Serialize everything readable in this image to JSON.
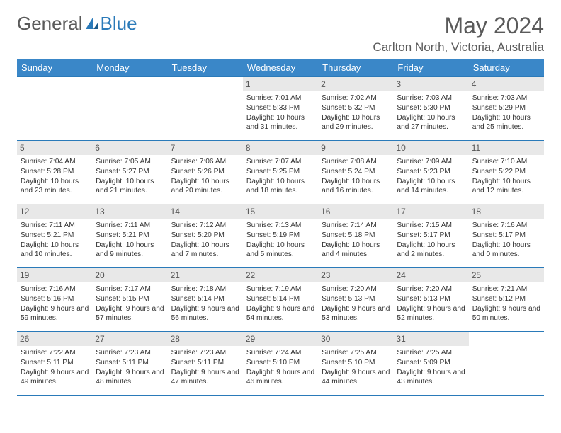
{
  "brand": {
    "part1": "General",
    "part2": "Blue"
  },
  "title": "May 2024",
  "location": "Carlton North, Victoria, Australia",
  "header_bg": "#3a87c8",
  "header_fg": "#ffffff",
  "border_color": "#2a7ab9",
  "daynum_bg": "#e8e8e8",
  "text_color": "#333333",
  "weekdays": [
    "Sunday",
    "Monday",
    "Tuesday",
    "Wednesday",
    "Thursday",
    "Friday",
    "Saturday"
  ],
  "first_weekday": 3,
  "days_in_month": 31,
  "days": {
    "1": {
      "sr": "7:01 AM",
      "ss": "5:33 PM",
      "dl": "10 hours and 31 minutes."
    },
    "2": {
      "sr": "7:02 AM",
      "ss": "5:32 PM",
      "dl": "10 hours and 29 minutes."
    },
    "3": {
      "sr": "7:03 AM",
      "ss": "5:30 PM",
      "dl": "10 hours and 27 minutes."
    },
    "4": {
      "sr": "7:03 AM",
      "ss": "5:29 PM",
      "dl": "10 hours and 25 minutes."
    },
    "5": {
      "sr": "7:04 AM",
      "ss": "5:28 PM",
      "dl": "10 hours and 23 minutes."
    },
    "6": {
      "sr": "7:05 AM",
      "ss": "5:27 PM",
      "dl": "10 hours and 21 minutes."
    },
    "7": {
      "sr": "7:06 AM",
      "ss": "5:26 PM",
      "dl": "10 hours and 20 minutes."
    },
    "8": {
      "sr": "7:07 AM",
      "ss": "5:25 PM",
      "dl": "10 hours and 18 minutes."
    },
    "9": {
      "sr": "7:08 AM",
      "ss": "5:24 PM",
      "dl": "10 hours and 16 minutes."
    },
    "10": {
      "sr": "7:09 AM",
      "ss": "5:23 PM",
      "dl": "10 hours and 14 minutes."
    },
    "11": {
      "sr": "7:10 AM",
      "ss": "5:22 PM",
      "dl": "10 hours and 12 minutes."
    },
    "12": {
      "sr": "7:11 AM",
      "ss": "5:21 PM",
      "dl": "10 hours and 10 minutes."
    },
    "13": {
      "sr": "7:11 AM",
      "ss": "5:21 PM",
      "dl": "10 hours and 9 minutes."
    },
    "14": {
      "sr": "7:12 AM",
      "ss": "5:20 PM",
      "dl": "10 hours and 7 minutes."
    },
    "15": {
      "sr": "7:13 AM",
      "ss": "5:19 PM",
      "dl": "10 hours and 5 minutes."
    },
    "16": {
      "sr": "7:14 AM",
      "ss": "5:18 PM",
      "dl": "10 hours and 4 minutes."
    },
    "17": {
      "sr": "7:15 AM",
      "ss": "5:17 PM",
      "dl": "10 hours and 2 minutes."
    },
    "18": {
      "sr": "7:16 AM",
      "ss": "5:17 PM",
      "dl": "10 hours and 0 minutes."
    },
    "19": {
      "sr": "7:16 AM",
      "ss": "5:16 PM",
      "dl": "9 hours and 59 minutes."
    },
    "20": {
      "sr": "7:17 AM",
      "ss": "5:15 PM",
      "dl": "9 hours and 57 minutes."
    },
    "21": {
      "sr": "7:18 AM",
      "ss": "5:14 PM",
      "dl": "9 hours and 56 minutes."
    },
    "22": {
      "sr": "7:19 AM",
      "ss": "5:14 PM",
      "dl": "9 hours and 54 minutes."
    },
    "23": {
      "sr": "7:20 AM",
      "ss": "5:13 PM",
      "dl": "9 hours and 53 minutes."
    },
    "24": {
      "sr": "7:20 AM",
      "ss": "5:13 PM",
      "dl": "9 hours and 52 minutes."
    },
    "25": {
      "sr": "7:21 AM",
      "ss": "5:12 PM",
      "dl": "9 hours and 50 minutes."
    },
    "26": {
      "sr": "7:22 AM",
      "ss": "5:11 PM",
      "dl": "9 hours and 49 minutes."
    },
    "27": {
      "sr": "7:23 AM",
      "ss": "5:11 PM",
      "dl": "9 hours and 48 minutes."
    },
    "28": {
      "sr": "7:23 AM",
      "ss": "5:11 PM",
      "dl": "9 hours and 47 minutes."
    },
    "29": {
      "sr": "7:24 AM",
      "ss": "5:10 PM",
      "dl": "9 hours and 46 minutes."
    },
    "30": {
      "sr": "7:25 AM",
      "ss": "5:10 PM",
      "dl": "9 hours and 44 minutes."
    },
    "31": {
      "sr": "7:25 AM",
      "ss": "5:09 PM",
      "dl": "9 hours and 43 minutes."
    }
  },
  "labels": {
    "sunrise": "Sunrise: ",
    "sunset": "Sunset: ",
    "daylight": "Daylight: "
  }
}
